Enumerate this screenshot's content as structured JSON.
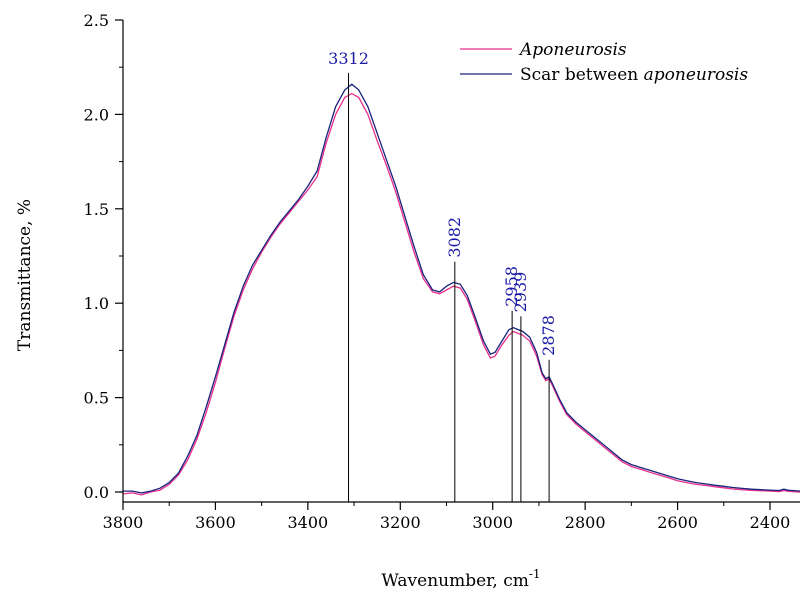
{
  "chart_data": {
    "type": "line",
    "xlabel": "Wavenumber, cm",
    "xlabel_sup": "-1",
    "ylabel": "Transmittance, %",
    "xlim": [
      3800,
      2300
    ],
    "x_reversed": true,
    "ylim": [
      -0.05,
      2.5
    ],
    "x_ticks": [
      3800,
      3600,
      3400,
      3200,
      3000,
      2800,
      2600,
      2400
    ],
    "y_ticks": [
      0.0,
      0.5,
      1.0,
      1.5,
      2.0,
      2.5
    ],
    "y_tick_labels": [
      "0.0",
      "0.5",
      "1.0",
      "1.5",
      "2.0",
      "2.5"
    ],
    "legend": {
      "position": "top-right",
      "entries": [
        {
          "prefix": "",
          "italic": "Aponeurosis",
          "color": "#e8308a"
        },
        {
          "prefix": "Scar between ",
          "italic": "aponeurosis",
          "color": "#1a237e"
        }
      ]
    },
    "peak_color": "#1a1aa6",
    "peaks": [
      {
        "x": 3312,
        "label": "3312",
        "top": 2.22,
        "rotated": false
      },
      {
        "x": 3082,
        "label": "3082",
        "top": 1.22,
        "rotated": true
      },
      {
        "x": 2958,
        "label": "2958",
        "top": 0.96,
        "rotated": true
      },
      {
        "x": 2939,
        "label": "2939",
        "top": 0.93,
        "rotated": true
      },
      {
        "x": 2878,
        "label": "2878",
        "top": 0.7,
        "rotated": true
      }
    ],
    "series": [
      {
        "name": "Aponeurosis",
        "color": "#e8308a",
        "points": [
          [
            3800,
            -0.01
          ],
          [
            3780,
            -0.005
          ],
          [
            3760,
            -0.015
          ],
          [
            3740,
            0.0
          ],
          [
            3720,
            0.01
          ],
          [
            3700,
            0.04
          ],
          [
            3680,
            0.09
          ],
          [
            3660,
            0.17
          ],
          [
            3640,
            0.28
          ],
          [
            3620,
            0.42
          ],
          [
            3600,
            0.58
          ],
          [
            3580,
            0.76
          ],
          [
            3560,
            0.93
          ],
          [
            3540,
            1.07
          ],
          [
            3520,
            1.18
          ],
          [
            3500,
            1.27
          ],
          [
            3480,
            1.35
          ],
          [
            3460,
            1.42
          ],
          [
            3440,
            1.48
          ],
          [
            3420,
            1.54
          ],
          [
            3400,
            1.6
          ],
          [
            3380,
            1.67
          ],
          [
            3360,
            1.85
          ],
          [
            3340,
            2.0
          ],
          [
            3320,
            2.09
          ],
          [
            3305,
            2.11
          ],
          [
            3290,
            2.09
          ],
          [
            3270,
            2.0
          ],
          [
            3250,
            1.86
          ],
          [
            3230,
            1.73
          ],
          [
            3210,
            1.59
          ],
          [
            3190,
            1.43
          ],
          [
            3170,
            1.27
          ],
          [
            3150,
            1.13
          ],
          [
            3130,
            1.06
          ],
          [
            3115,
            1.05
          ],
          [
            3100,
            1.07
          ],
          [
            3085,
            1.09
          ],
          [
            3070,
            1.08
          ],
          [
            3055,
            1.02
          ],
          [
            3040,
            0.92
          ],
          [
            3020,
            0.78
          ],
          [
            3005,
            0.71
          ],
          [
            2995,
            0.72
          ],
          [
            2980,
            0.78
          ],
          [
            2965,
            0.83
          ],
          [
            2955,
            0.85
          ],
          [
            2945,
            0.84
          ],
          [
            2935,
            0.83
          ],
          [
            2920,
            0.8
          ],
          [
            2905,
            0.72
          ],
          [
            2893,
            0.62
          ],
          [
            2885,
            0.59
          ],
          [
            2878,
            0.6
          ],
          [
            2870,
            0.56
          ],
          [
            2855,
            0.48
          ],
          [
            2840,
            0.41
          ],
          [
            2820,
            0.36
          ],
          [
            2800,
            0.32
          ],
          [
            2780,
            0.28
          ],
          [
            2760,
            0.24
          ],
          [
            2740,
            0.2
          ],
          [
            2720,
            0.16
          ],
          [
            2700,
            0.135
          ],
          [
            2680,
            0.12
          ],
          [
            2660,
            0.105
          ],
          [
            2640,
            0.09
          ],
          [
            2620,
            0.075
          ],
          [
            2600,
            0.06
          ],
          [
            2580,
            0.05
          ],
          [
            2560,
            0.04
          ],
          [
            2540,
            0.035
          ],
          [
            2520,
            0.028
          ],
          [
            2500,
            0.022
          ],
          [
            2480,
            0.016
          ],
          [
            2460,
            0.012
          ],
          [
            2440,
            0.009
          ],
          [
            2420,
            0.007
          ],
          [
            2400,
            0.005
          ],
          [
            2380,
            0.002
          ],
          [
            2370,
            0.008
          ],
          [
            2360,
            0.003
          ],
          [
            2340,
            0.0
          ],
          [
            2320,
            -0.002
          ],
          [
            2300,
            -0.004
          ]
        ]
      },
      {
        "name": "Scar between aponeurosis",
        "color": "#1a237e",
        "points": [
          [
            3800,
            0.005
          ],
          [
            3780,
            0.005
          ],
          [
            3760,
            -0.005
          ],
          [
            3740,
            0.005
          ],
          [
            3720,
            0.02
          ],
          [
            3700,
            0.05
          ],
          [
            3680,
            0.1
          ],
          [
            3660,
            0.19
          ],
          [
            3640,
            0.3
          ],
          [
            3620,
            0.45
          ],
          [
            3600,
            0.61
          ],
          [
            3580,
            0.78
          ],
          [
            3560,
            0.95
          ],
          [
            3540,
            1.09
          ],
          [
            3520,
            1.2
          ],
          [
            3500,
            1.28
          ],
          [
            3480,
            1.36
          ],
          [
            3460,
            1.43
          ],
          [
            3440,
            1.49
          ],
          [
            3420,
            1.55
          ],
          [
            3400,
            1.62
          ],
          [
            3380,
            1.7
          ],
          [
            3360,
            1.88
          ],
          [
            3340,
            2.04
          ],
          [
            3320,
            2.13
          ],
          [
            3305,
            2.16
          ],
          [
            3290,
            2.13
          ],
          [
            3270,
            2.04
          ],
          [
            3250,
            1.9
          ],
          [
            3230,
            1.76
          ],
          [
            3210,
            1.62
          ],
          [
            3190,
            1.46
          ],
          [
            3170,
            1.3
          ],
          [
            3150,
            1.15
          ],
          [
            3130,
            1.07
          ],
          [
            3115,
            1.06
          ],
          [
            3100,
            1.09
          ],
          [
            3085,
            1.11
          ],
          [
            3070,
            1.1
          ],
          [
            3055,
            1.04
          ],
          [
            3040,
            0.94
          ],
          [
            3020,
            0.8
          ],
          [
            3005,
            0.73
          ],
          [
            2995,
            0.74
          ],
          [
            2980,
            0.8
          ],
          [
            2965,
            0.86
          ],
          [
            2955,
            0.87
          ],
          [
            2945,
            0.86
          ],
          [
            2935,
            0.85
          ],
          [
            2920,
            0.82
          ],
          [
            2905,
            0.74
          ],
          [
            2893,
            0.63
          ],
          [
            2885,
            0.6
          ],
          [
            2878,
            0.61
          ],
          [
            2870,
            0.57
          ],
          [
            2855,
            0.49
          ],
          [
            2840,
            0.42
          ],
          [
            2820,
            0.37
          ],
          [
            2800,
            0.33
          ],
          [
            2780,
            0.29
          ],
          [
            2760,
            0.25
          ],
          [
            2740,
            0.21
          ],
          [
            2720,
            0.17
          ],
          [
            2700,
            0.145
          ],
          [
            2680,
            0.13
          ],
          [
            2660,
            0.115
          ],
          [
            2640,
            0.1
          ],
          [
            2620,
            0.085
          ],
          [
            2600,
            0.07
          ],
          [
            2580,
            0.06
          ],
          [
            2560,
            0.05
          ],
          [
            2540,
            0.043
          ],
          [
            2520,
            0.036
          ],
          [
            2500,
            0.03
          ],
          [
            2480,
            0.024
          ],
          [
            2460,
            0.019
          ],
          [
            2440,
            0.015
          ],
          [
            2420,
            0.012
          ],
          [
            2400,
            0.01
          ],
          [
            2380,
            0.008
          ],
          [
            2370,
            0.015
          ],
          [
            2360,
            0.009
          ],
          [
            2340,
            0.006
          ],
          [
            2320,
            0.004
          ],
          [
            2300,
            0.002
          ]
        ]
      }
    ]
  }
}
